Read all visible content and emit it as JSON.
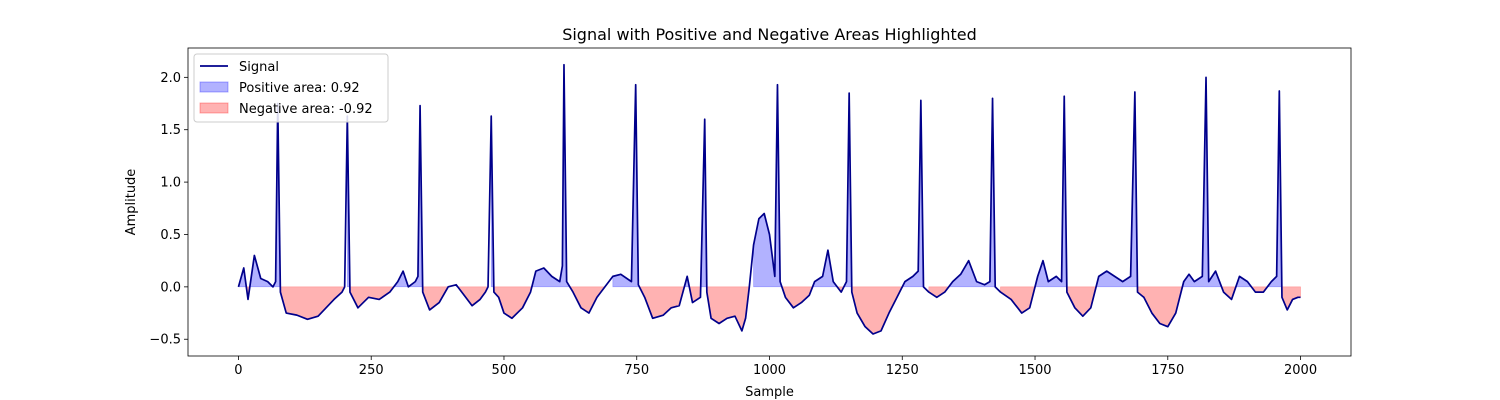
{
  "chart_data": {
    "type": "line",
    "title": "Signal with Positive and Negative Areas Highlighted",
    "xlabel": "Sample",
    "ylabel": "Amplitude",
    "xlim": [
      -95,
      2095
    ],
    "ylim": [
      -0.66,
      2.28
    ],
    "x_ticks": [
      0,
      250,
      500,
      750,
      1000,
      1250,
      1500,
      1750,
      2000
    ],
    "y_ticks": [
      -0.5,
      0.0,
      0.5,
      1.0,
      1.5,
      2.0
    ],
    "x_tick_labels": [
      "0",
      "250",
      "500",
      "750",
      "1000",
      "1250",
      "1500",
      "1750",
      "2000"
    ],
    "y_tick_labels": [
      "−0.5",
      "0.0",
      "0.5",
      "1.0",
      "1.5",
      "2.0"
    ],
    "grid": false,
    "legend_position": "top-left",
    "legend": [
      {
        "kind": "line",
        "label": "Signal",
        "color": "#00008b"
      },
      {
        "kind": "patch",
        "label": "Positive area: 0.92",
        "color": "#0000ff"
      },
      {
        "kind": "patch",
        "label": "Negative area: -0.92",
        "color": "#ff0000"
      }
    ],
    "series": [
      {
        "name": "Signal",
        "color": "#00008b",
        "points": [
          [
            0,
            0
          ],
          [
            10,
            0.18
          ],
          [
            18,
            -0.12
          ],
          [
            30,
            0.3
          ],
          [
            42,
            0.08
          ],
          [
            55,
            0.05
          ],
          [
            65,
            0.0
          ],
          [
            70,
            0.05
          ],
          [
            74,
            1.75
          ],
          [
            79,
            -0.05
          ],
          [
            90,
            -0.25
          ],
          [
            110,
            -0.27
          ],
          [
            130,
            -0.31
          ],
          [
            150,
            -0.28
          ],
          [
            165,
            -0.2
          ],
          [
            180,
            -0.12
          ],
          [
            195,
            -0.05
          ],
          [
            200,
            0.0
          ],
          [
            205,
            1.63
          ],
          [
            210,
            -0.05
          ],
          [
            225,
            -0.2
          ],
          [
            245,
            -0.1
          ],
          [
            265,
            -0.12
          ],
          [
            285,
            -0.05
          ],
          [
            300,
            0.05
          ],
          [
            310,
            0.15
          ],
          [
            320,
            0.0
          ],
          [
            333,
            0.05
          ],
          [
            338,
            0.1
          ],
          [
            342,
            1.73
          ],
          [
            347,
            -0.05
          ],
          [
            360,
            -0.22
          ],
          [
            378,
            -0.15
          ],
          [
            395,
            0.0
          ],
          [
            410,
            0.02
          ],
          [
            425,
            -0.08
          ],
          [
            440,
            -0.18
          ],
          [
            455,
            -0.12
          ],
          [
            465,
            -0.05
          ],
          [
            470,
            0.0
          ],
          [
            476,
            1.63
          ],
          [
            481,
            -0.05
          ],
          [
            490,
            -0.1
          ],
          [
            500,
            -0.25
          ],
          [
            515,
            -0.3
          ],
          [
            535,
            -0.2
          ],
          [
            550,
            -0.05
          ],
          [
            560,
            0.15
          ],
          [
            575,
            0.18
          ],
          [
            590,
            0.1
          ],
          [
            605,
            0.05
          ],
          [
            610,
            0.2
          ],
          [
            613,
            2.12
          ],
          [
            618,
            0.05
          ],
          [
            630,
            -0.05
          ],
          [
            645,
            -0.2
          ],
          [
            660,
            -0.25
          ],
          [
            675,
            -0.1
          ],
          [
            690,
            0.0
          ],
          [
            705,
            0.1
          ],
          [
            720,
            0.12
          ],
          [
            740,
            0.05
          ],
          [
            748,
            1.93
          ],
          [
            753,
            0.02
          ],
          [
            765,
            -0.1
          ],
          [
            780,
            -0.3
          ],
          [
            800,
            -0.27
          ],
          [
            815,
            -0.2
          ],
          [
            830,
            -0.18
          ],
          [
            845,
            0.1
          ],
          [
            855,
            -0.15
          ],
          [
            870,
            -0.1
          ],
          [
            878,
            1.6
          ],
          [
            882,
            -0.05
          ],
          [
            890,
            -0.3
          ],
          [
            905,
            -0.35
          ],
          [
            920,
            -0.3
          ],
          [
            935,
            -0.28
          ],
          [
            948,
            -0.42
          ],
          [
            955,
            -0.3
          ],
          [
            962,
            0.0
          ],
          [
            970,
            0.4
          ],
          [
            980,
            0.65
          ],
          [
            990,
            0.7
          ],
          [
            1000,
            0.5
          ],
          [
            1010,
            0.1
          ],
          [
            1015,
            1.93
          ],
          [
            1020,
            0.05
          ],
          [
            1030,
            -0.1
          ],
          [
            1045,
            -0.2
          ],
          [
            1060,
            -0.15
          ],
          [
            1075,
            -0.08
          ],
          [
            1085,
            0.05
          ],
          [
            1100,
            0.1
          ],
          [
            1110,
            0.35
          ],
          [
            1120,
            0.05
          ],
          [
            1135,
            -0.05
          ],
          [
            1145,
            0.05
          ],
          [
            1150,
            1.85
          ],
          [
            1155,
            -0.05
          ],
          [
            1165,
            -0.25
          ],
          [
            1180,
            -0.38
          ],
          [
            1195,
            -0.45
          ],
          [
            1210,
            -0.42
          ],
          [
            1225,
            -0.25
          ],
          [
            1240,
            -0.1
          ],
          [
            1255,
            0.05
          ],
          [
            1270,
            0.1
          ],
          [
            1280,
            0.15
          ],
          [
            1285,
            1.78
          ],
          [
            1290,
            0.0
          ],
          [
            1300,
            -0.05
          ],
          [
            1315,
            -0.1
          ],
          [
            1330,
            -0.05
          ],
          [
            1345,
            0.05
          ],
          [
            1360,
            0.12
          ],
          [
            1375,
            0.25
          ],
          [
            1390,
            0.05
          ],
          [
            1405,
            0.02
          ],
          [
            1415,
            0.05
          ],
          [
            1420,
            1.8
          ],
          [
            1425,
            0.0
          ],
          [
            1435,
            -0.05
          ],
          [
            1455,
            -0.12
          ],
          [
            1475,
            -0.25
          ],
          [
            1490,
            -0.2
          ],
          [
            1505,
            0.1
          ],
          [
            1515,
            0.25
          ],
          [
            1525,
            0.05
          ],
          [
            1540,
            0.1
          ],
          [
            1550,
            0.05
          ],
          [
            1555,
            1.82
          ],
          [
            1560,
            -0.05
          ],
          [
            1575,
            -0.2
          ],
          [
            1590,
            -0.28
          ],
          [
            1605,
            -0.2
          ],
          [
            1620,
            0.1
          ],
          [
            1635,
            0.15
          ],
          [
            1650,
            0.1
          ],
          [
            1665,
            0.05
          ],
          [
            1680,
            0.1
          ],
          [
            1688,
            1.86
          ],
          [
            1693,
            -0.05
          ],
          [
            1705,
            -0.1
          ],
          [
            1720,
            -0.25
          ],
          [
            1735,
            -0.35
          ],
          [
            1750,
            -0.38
          ],
          [
            1765,
            -0.25
          ],
          [
            1780,
            0.05
          ],
          [
            1790,
            0.12
          ],
          [
            1800,
            0.05
          ],
          [
            1815,
            0.1
          ],
          [
            1822,
            2.0
          ],
          [
            1827,
            0.05
          ],
          [
            1840,
            0.15
          ],
          [
            1855,
            -0.05
          ],
          [
            1870,
            -0.12
          ],
          [
            1885,
            0.1
          ],
          [
            1900,
            0.05
          ],
          [
            1915,
            -0.05
          ],
          [
            1930,
            -0.05
          ],
          [
            1945,
            0.05
          ],
          [
            1955,
            0.1
          ],
          [
            1960,
            1.87
          ],
          [
            1965,
            -0.1
          ],
          [
            1975,
            -0.22
          ],
          [
            1985,
            -0.12
          ],
          [
            1995,
            -0.1
          ],
          [
            2000,
            -0.1
          ]
        ]
      }
    ],
    "fills": {
      "positive_color": "#0000ff",
      "negative_color": "#ff0000",
      "opacity": 0.3
    }
  }
}
